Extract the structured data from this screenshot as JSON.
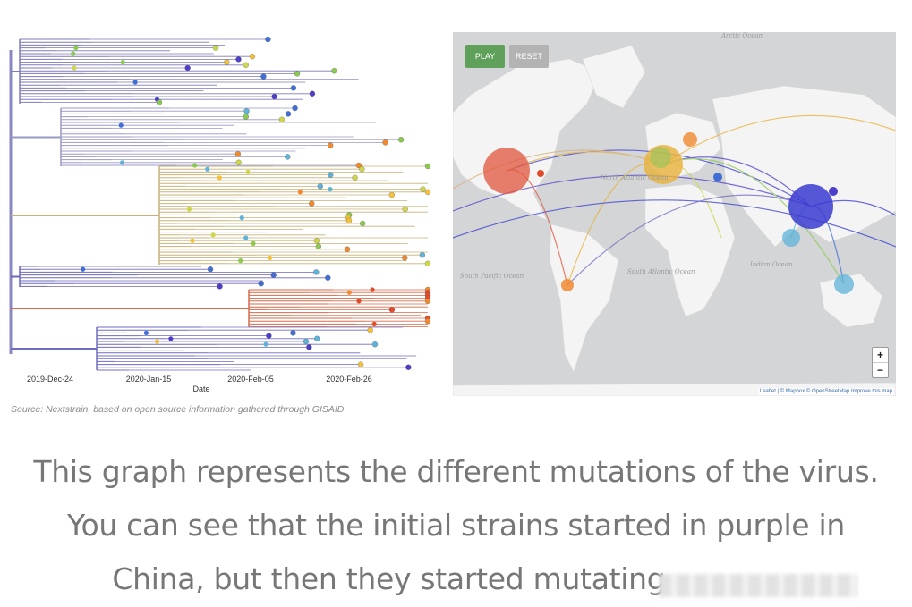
{
  "tree": {
    "axis_ticks": [
      "2019-Dec-24",
      "2020-Jan-15",
      "2020-Feb-05",
      "2020-Feb-26"
    ],
    "axis_label": "Date",
    "tip_colors": [
      "#4c3ec9",
      "#3f6fd6",
      "#5fb3d9",
      "#8cc94f",
      "#cfd64a",
      "#f2c23a",
      "#f08a2f",
      "#e24a2a",
      "#d7b27a"
    ]
  },
  "map": {
    "play_label": "PLAY",
    "reset_label": "RESET",
    "zoom_in": "+",
    "zoom_out": "−",
    "attribution": "Leaflet | © Mapbox © OpenStreetMap Improve this map",
    "ocean_labels": {
      "arctic": "Arctic Ocean",
      "north_atlantic": "North Atlantic Ocean",
      "south_atlantic": "South Atlantic Ocean",
      "south_pacific": "South Pacific Ocean",
      "indian": "Indian Ocean"
    },
    "colors": {
      "land": "#f4f4f4",
      "water": "#d3d5d6",
      "china": "#3a3bd0",
      "europe": "#e8b23a",
      "usa": "#e2553c"
    }
  },
  "source": "Source: Nextstrain, based on open source information gathered through GISAID",
  "caption": {
    "line1": "This graph represents the different mutations of the virus.",
    "line2": "You can see that the initial strains started in purple in",
    "line3": "China, but then they started mutating."
  }
}
